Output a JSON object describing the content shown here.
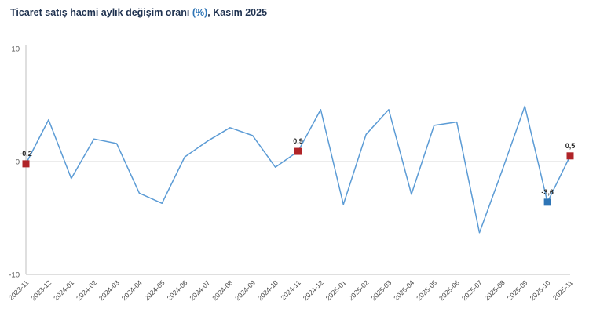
{
  "title": {
    "main": "Ticaret satış hacmi aylık değişim oranı ",
    "percent": "(%)",
    "period": ", Kasım 2025"
  },
  "colors": {
    "title_text": "#1f3250",
    "title_accent": "#2e75b6",
    "axis_line": "#bfbfbf",
    "zero_line": "#d9d9d9",
    "tick_text": "#4d4d4d",
    "data_label_text": "#262626"
  },
  "chart_data": {
    "type": "line",
    "title": "Ticaret satış hacmi aylık değişim oranı (%), Kasım 2025",
    "categories": [
      "2023-11",
      "2023-12",
      "2024-01",
      "2024-02",
      "2024-03",
      "2024-04",
      "2024-05",
      "2024-06",
      "2024-07",
      "2024-08",
      "2024-09",
      "2024-10",
      "2024-11",
      "2024-12",
      "2025-01",
      "2025-02",
      "2025-03",
      "2025-04",
      "2025-05",
      "2025-06",
      "2025-07",
      "2025-08",
      "2025-09",
      "2025-10",
      "2025-11"
    ],
    "values": [
      -0.2,
      3.7,
      -1.5,
      2.0,
      1.6,
      -2.8,
      -3.7,
      0.4,
      1.8,
      3.0,
      2.3,
      -0.5,
      0.9,
      4.6,
      -3.8,
      2.4,
      4.6,
      -2.9,
      3.2,
      3.5,
      -6.3,
      -0.8,
      4.9,
      -3.6,
      0.5
    ],
    "ylim": [
      -10,
      10
    ],
    "yticks": [
      10,
      0,
      -10
    ],
    "grid": "zero-line-only",
    "legend": "none",
    "line_color": "#5b9bd5",
    "highlight_points": [
      {
        "index": 0,
        "category": "2023-11",
        "value": -0.2,
        "label": "-0,2",
        "color": "#b02428"
      },
      {
        "index": 12,
        "category": "2024-11",
        "value": 0.9,
        "label": "0,9",
        "color": "#b02428"
      },
      {
        "index": 23,
        "category": "2025-10",
        "value": -3.6,
        "label": "-3,6",
        "color": "#2e75b6"
      },
      {
        "index": 24,
        "category": "2025-11",
        "value": 0.5,
        "label": "0,5",
        "color": "#b02428"
      }
    ]
  }
}
